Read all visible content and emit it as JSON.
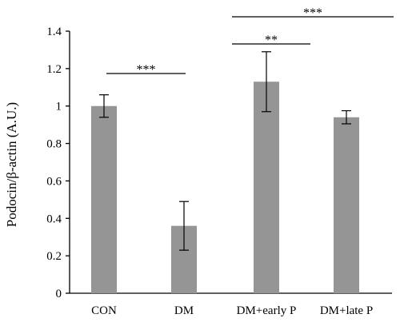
{
  "chart_data": {
    "type": "bar",
    "categories": [
      "CON",
      "DM",
      "DM+early P",
      "DM+late P"
    ],
    "values": [
      1.0,
      0.36,
      1.13,
      0.94
    ],
    "error": [
      0.06,
      0.13,
      0.16,
      0.035
    ],
    "ylabel": "Podocin/β-actin (A.U.)",
    "ylim": [
      0,
      1.4
    ],
    "yticks": [
      0,
      0.2,
      0.4,
      0.6,
      0.8,
      1,
      1.2,
      1.4
    ],
    "ytick_labels": [
      "0",
      "0.2",
      "0.4",
      "0.6",
      "0.8",
      "1",
      "1.2",
      "1.4"
    ],
    "bar_color": "#959595",
    "significance": [
      {
        "from": "CON",
        "to": "DM",
        "label": "***"
      },
      {
        "from": "DM+early P",
        "to": "DM+early P",
        "label": "**"
      },
      {
        "from": "DM+early P",
        "to": "DM+late P",
        "label": "***"
      }
    ]
  }
}
